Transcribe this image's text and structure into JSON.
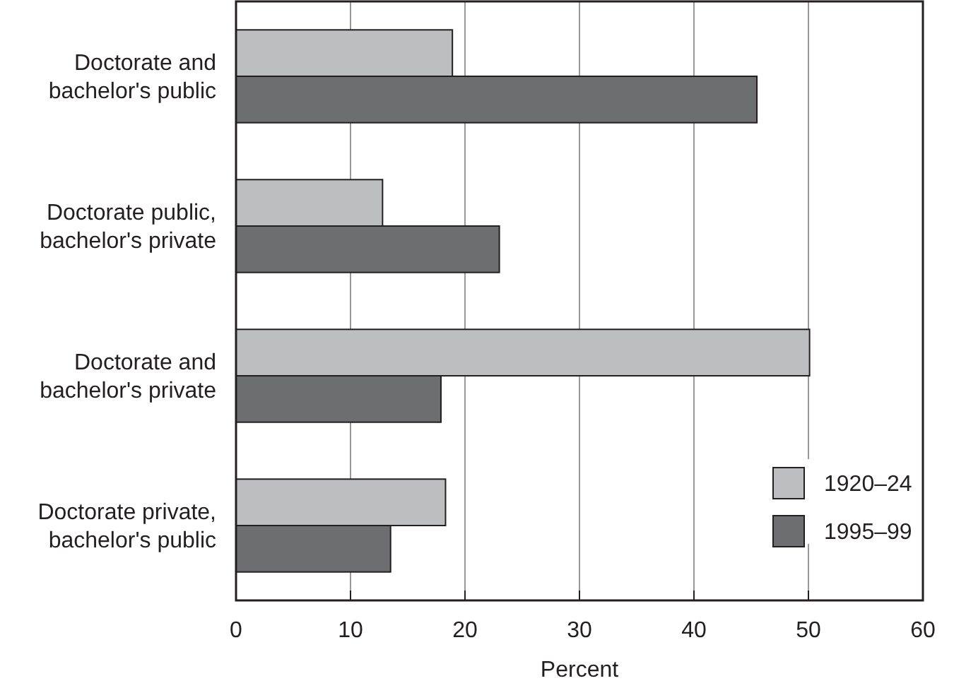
{
  "chart_data": {
    "type": "bar",
    "orientation": "horizontal",
    "xlabel": "Percent",
    "categories": [
      "Doctorate and bachelor's public",
      "Doctorate public, bachelor's private",
      "Doctorate and bachelor's private",
      "Doctorate private, bachelor's public"
    ],
    "series": [
      {
        "name": "1920–24",
        "color": "#bdbec0",
        "values": [
          18.9,
          12.8,
          50.1,
          18.3
        ]
      },
      {
        "name": "1995–99",
        "color": "#6d6e70",
        "values": [
          45.5,
          23.0,
          17.9,
          13.5
        ]
      }
    ],
    "xlim": [
      0,
      60
    ],
    "xticks": [
      0,
      10,
      20,
      30,
      40,
      50,
      60
    ],
    "grid": "x",
    "legend": "bottom right"
  }
}
